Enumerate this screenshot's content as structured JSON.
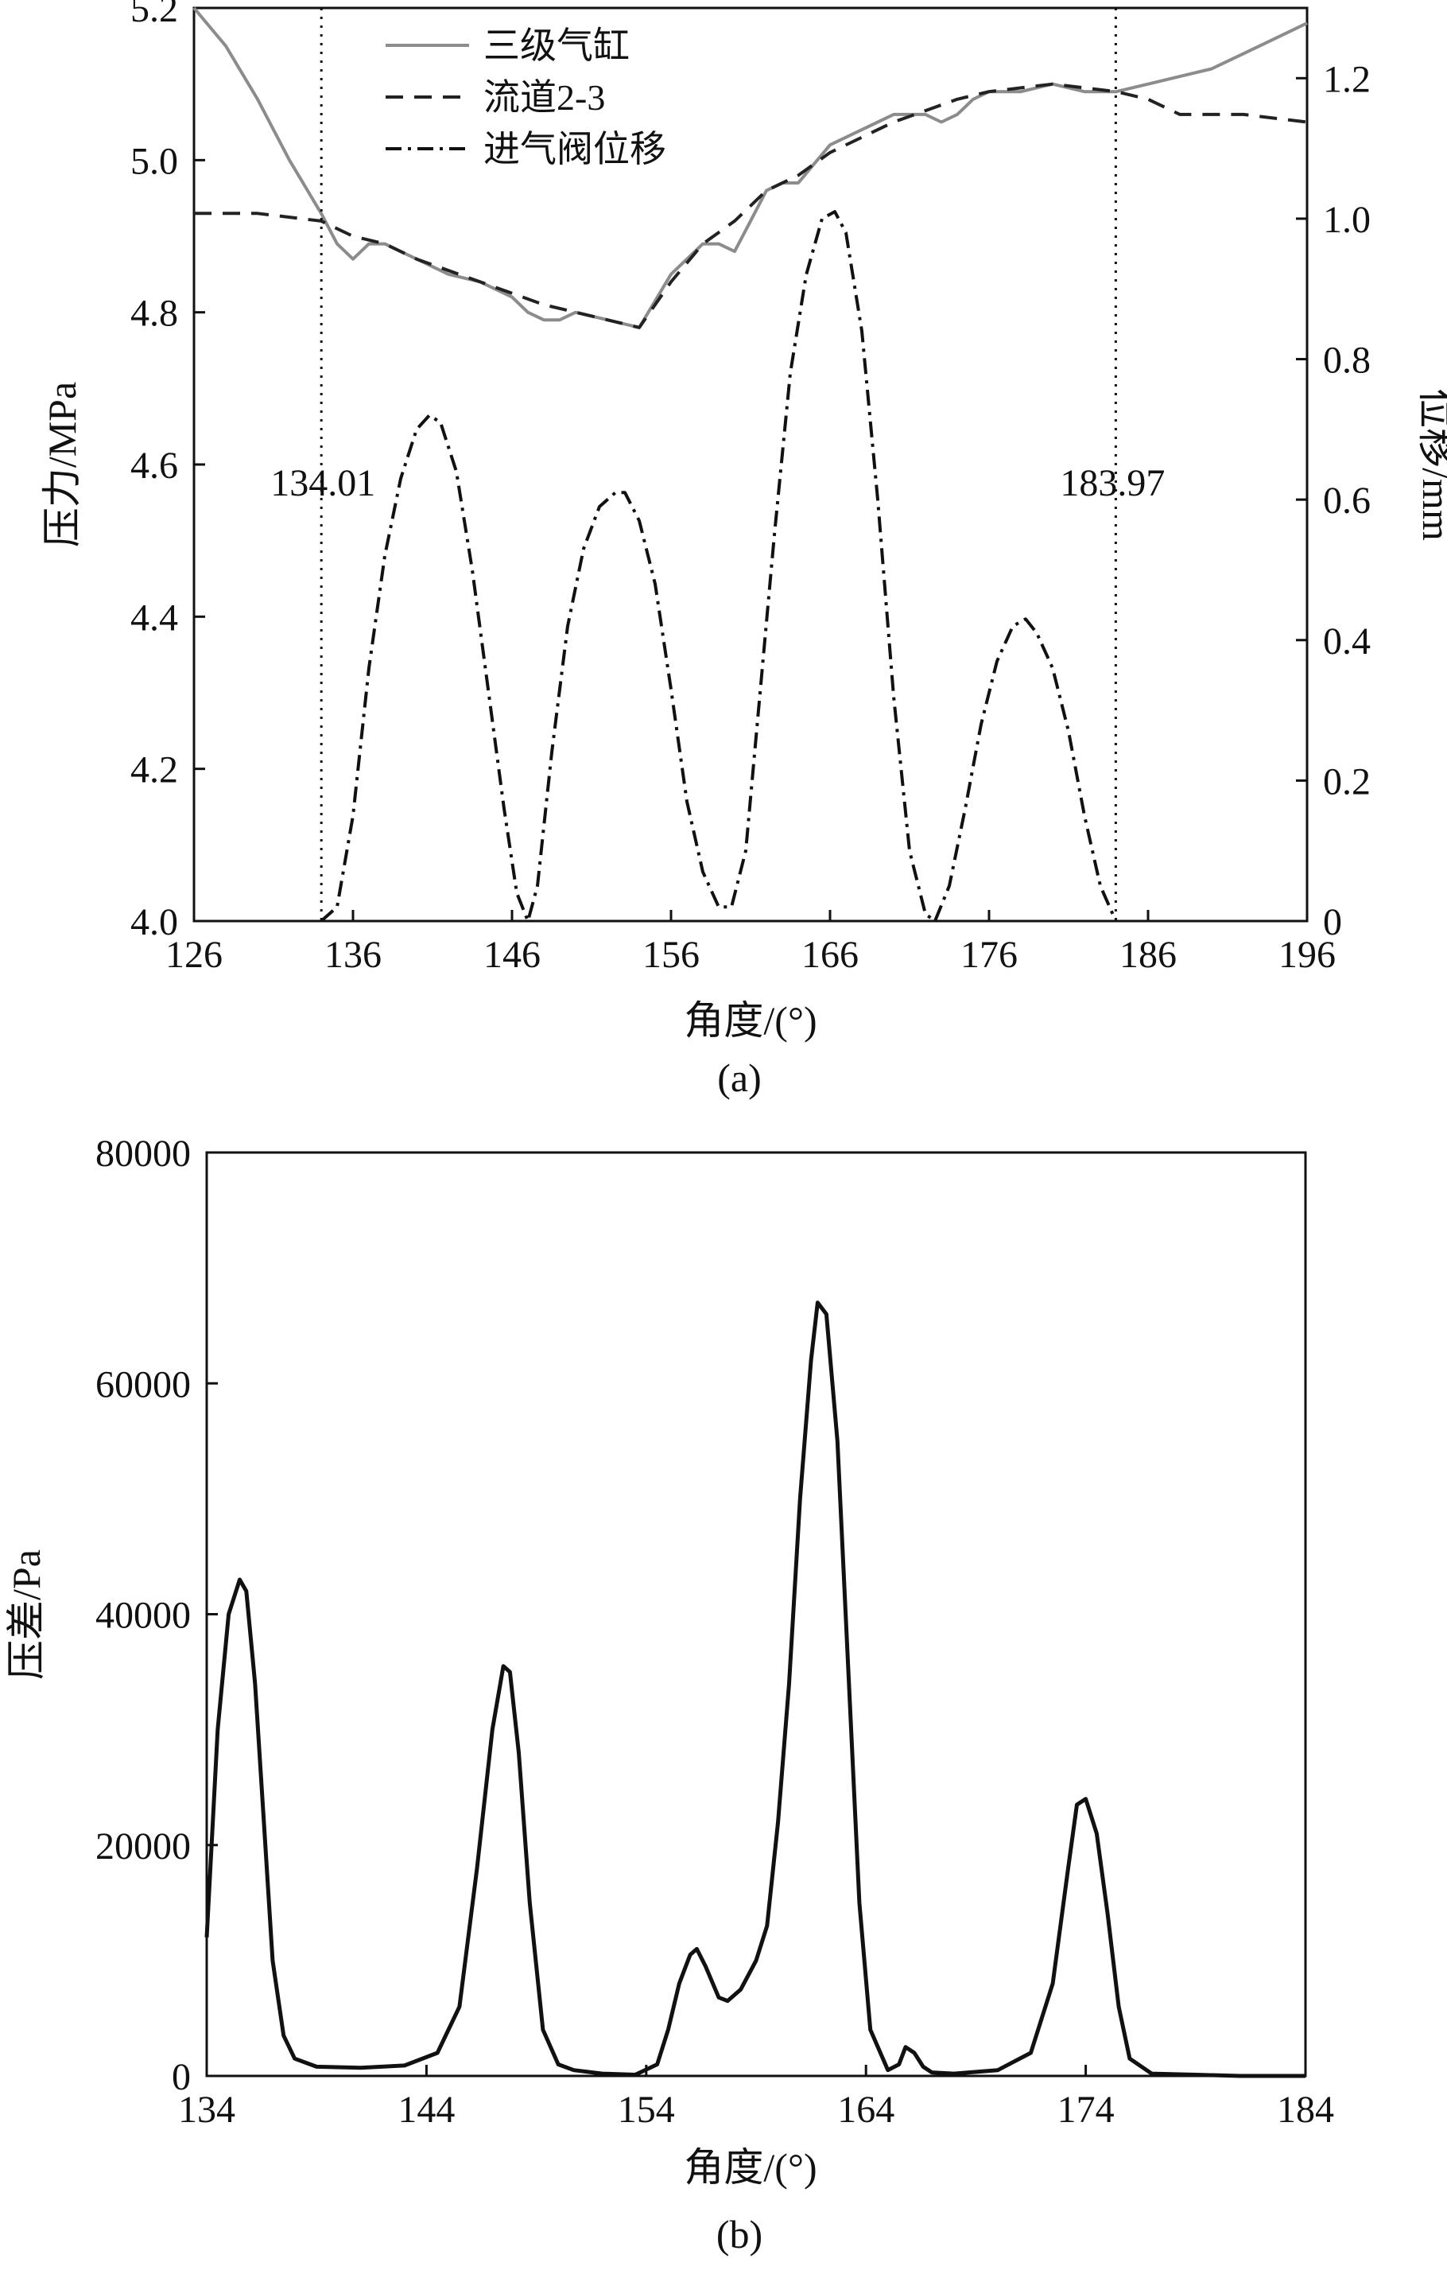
{
  "chart_data": [
    {
      "type": "line",
      "caption": "(a)",
      "xlabel": "角度/(°)",
      "ylabel": "压力/MPa",
      "y2label": "位移/mm",
      "xlim": [
        126,
        196
      ],
      "ylim": [
        4.0,
        5.2
      ],
      "y2lim": [
        0,
        1.3
      ],
      "xticks": [
        126,
        136,
        146,
        156,
        166,
        176,
        186,
        196
      ],
      "yticks": [
        "4.0",
        "4.2",
        "4.4",
        "4.6",
        "4.8",
        "5.0",
        "5.2"
      ],
      "y2ticks": [
        "0",
        "0.2",
        "0.4",
        "0.6",
        "0.8",
        "1.0",
        "1.2"
      ],
      "vlines": [
        {
          "x": 134.01,
          "label": "134.01"
        },
        {
          "x": 183.97,
          "label": "183.97"
        }
      ],
      "legend_position": "top-left",
      "series": [
        {
          "name": "三级气缸",
          "axis": "left",
          "style": "solid",
          "color": "#8c8c8c",
          "x": [
            126,
            128,
            130,
            132,
            134,
            135,
            136,
            137,
            138,
            140,
            142,
            144,
            146,
            147,
            148,
            149,
            150,
            152,
            154,
            156,
            158,
            159,
            160,
            161,
            162,
            163,
            164,
            166,
            168,
            170,
            172,
            173,
            174,
            175,
            176,
            178,
            180,
            182,
            184,
            186,
            188,
            190,
            192,
            194,
            196
          ],
          "y": [
            5.2,
            5.15,
            5.08,
            5.0,
            4.93,
            4.89,
            4.87,
            4.89,
            4.89,
            4.87,
            4.85,
            4.84,
            4.82,
            4.8,
            4.79,
            4.79,
            4.8,
            4.79,
            4.78,
            4.85,
            4.89,
            4.89,
            4.88,
            4.92,
            4.96,
            4.97,
            4.97,
            5.02,
            5.04,
            5.06,
            5.06,
            5.05,
            5.06,
            5.08,
            5.09,
            5.09,
            5.1,
            5.09,
            5.09,
            5.1,
            5.11,
            5.12,
            5.14,
            5.16,
            5.18
          ]
        },
        {
          "name": "流道2-3",
          "axis": "left",
          "style": "dashed",
          "color": "#222222",
          "x": [
            126,
            130,
            134,
            136,
            138,
            140,
            144,
            148,
            152,
            154,
            156,
            158,
            160,
            162,
            164,
            166,
            170,
            174,
            176,
            180,
            184,
            186,
            188,
            192,
            196
          ],
          "y": [
            4.93,
            4.93,
            4.92,
            4.9,
            4.89,
            4.87,
            4.84,
            4.81,
            4.79,
            4.78,
            4.84,
            4.89,
            4.92,
            4.96,
            4.98,
            5.01,
            5.05,
            5.08,
            5.09,
            5.1,
            5.09,
            5.08,
            5.06,
            5.06,
            5.05
          ]
        },
        {
          "name": "进气阀位移",
          "axis": "right",
          "style": "dash-dot",
          "color": "#111111",
          "x": [
            134,
            135,
            136,
            137,
            138,
            139,
            140,
            140.8,
            141.5,
            142.5,
            143.5,
            144.5,
            145.5,
            146.3,
            147,
            147.6,
            148.5,
            149.5,
            150.5,
            151.5,
            152.5,
            153.1,
            154,
            155,
            156,
            157,
            158,
            159,
            159.8,
            160.7,
            161.5,
            162.5,
            163.5,
            164.5,
            165.5,
            166.3,
            167,
            168,
            169,
            170,
            171,
            172,
            172.6,
            173.5,
            174.5,
            175.5,
            176.5,
            177.5,
            178.3,
            179,
            180,
            181,
            182,
            183,
            183.97
          ],
          "y": [
            0,
            0.02,
            0.15,
            0.36,
            0.52,
            0.63,
            0.7,
            0.72,
            0.71,
            0.64,
            0.5,
            0.33,
            0.16,
            0.04,
            0,
            0.05,
            0.24,
            0.42,
            0.53,
            0.59,
            0.61,
            0.61,
            0.57,
            0.48,
            0.33,
            0.17,
            0.07,
            0.02,
            0.02,
            0.1,
            0.3,
            0.55,
            0.78,
            0.92,
            1.0,
            1.01,
            0.98,
            0.84,
            0.6,
            0.32,
            0.1,
            0.01,
            0,
            0.05,
            0.16,
            0.28,
            0.37,
            0.42,
            0.43,
            0.41,
            0.36,
            0.27,
            0.15,
            0.05,
            0
          ]
        }
      ]
    },
    {
      "type": "line",
      "caption": "(b)",
      "xlabel": "角度/(°)",
      "ylabel": "压差/Pa",
      "xlim": [
        134,
        184
      ],
      "ylim": [
        0,
        80000
      ],
      "xticks": [
        134,
        144,
        154,
        164,
        174,
        184
      ],
      "yticks": [
        "0",
        "20000",
        "40000",
        "60000",
        "80000"
      ],
      "series": [
        {
          "color": "#111111",
          "x": [
            134,
            134.5,
            135,
            135.5,
            135.8,
            136.2,
            136.6,
            137,
            137.5,
            138,
            139,
            141,
            143,
            144.5,
            145.5,
            146.3,
            147,
            147.5,
            147.8,
            148.2,
            148.7,
            149.3,
            150,
            150.7,
            152,
            153.5,
            154.5,
            155,
            155.5,
            156,
            156.3,
            156.7,
            157.3,
            157.7,
            158.3,
            159,
            159.5,
            160,
            160.5,
            161,
            161.5,
            161.8,
            162.2,
            162.7,
            163.2,
            163.7,
            164.2,
            165,
            165.5,
            165.8,
            166.2,
            166.6,
            167,
            168,
            170,
            171.5,
            172.5,
            173.2,
            173.6,
            174,
            174.5,
            175,
            175.5,
            176,
            177,
            179,
            181,
            184
          ],
          "y": [
            12000,
            30000,
            40000,
            43000,
            42000,
            34000,
            22000,
            10000,
            3500,
            1500,
            800,
            700,
            900,
            2000,
            6000,
            18000,
            30000,
            35500,
            35000,
            28000,
            15000,
            4000,
            1000,
            500,
            200,
            100,
            1000,
            4000,
            8000,
            10500,
            11000,
            9500,
            6800,
            6500,
            7500,
            10000,
            13000,
            22000,
            34000,
            50000,
            62000,
            67000,
            66000,
            55000,
            35000,
            15000,
            4000,
            500,
            1000,
            2500,
            2000,
            800,
            300,
            200,
            500,
            2000,
            8000,
            18000,
            23500,
            24000,
            21000,
            14000,
            6000,
            1500,
            200,
            100,
            0,
            0
          ]
        }
      ]
    }
  ]
}
